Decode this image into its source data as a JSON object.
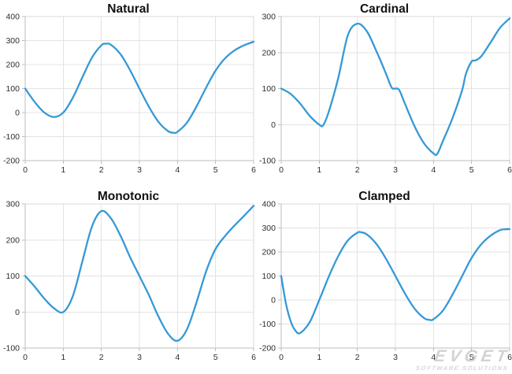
{
  "watermark": {
    "brand": "EVGET",
    "tagline": "SOFTWARE SOLUTIONS"
  },
  "colors": {
    "line": "#3599d6",
    "grid": "#e3e3e3",
    "plot_border": "#dadada",
    "axis": "#bdbdbd",
    "tick": "#bdbdbd",
    "tick_text": "#2e2e2e",
    "title_text": "#111111",
    "background": "#ffffff"
  },
  "chart_data": [
    {
      "id": "natural",
      "type": "line",
      "title": "Natural",
      "spline_type": "natural cubic spline",
      "xlim": [
        0,
        6
      ],
      "ylim": [
        -200,
        400
      ],
      "x_ticks": [
        0,
        1,
        2,
        3,
        4,
        5,
        6
      ],
      "y_ticks": [
        400,
        300,
        200,
        100,
        0,
        -100,
        -200
      ],
      "grid": true,
      "data_points": [
        [
          0,
          100
        ],
        [
          1,
          0
        ],
        [
          2,
          280
        ],
        [
          3,
          100
        ],
        [
          4,
          -80
        ],
        [
          5,
          175
        ],
        [
          6,
          295
        ]
      ],
      "curve": [
        [
          0,
          100
        ],
        [
          0.25,
          44
        ],
        [
          0.5,
          0.4
        ],
        [
          0.75,
          -18.4
        ],
        [
          1,
          0
        ],
        [
          1.25,
          61.6
        ],
        [
          1.5,
          146.5
        ],
        [
          1.75,
          228.1
        ],
        [
          2,
          280
        ],
        [
          2.125,
          287
        ],
        [
          2.25,
          282.5
        ],
        [
          2.5,
          243.8
        ],
        [
          2.75,
          178
        ],
        [
          3,
          100
        ],
        [
          3.25,
          24
        ],
        [
          3.5,
          -38.7
        ],
        [
          3.75,
          -77
        ],
        [
          3.9,
          -84
        ],
        [
          4,
          -80
        ],
        [
          4.25,
          -41.5
        ],
        [
          4.5,
          25.6
        ],
        [
          4.75,
          103.6
        ],
        [
          5,
          175
        ],
        [
          5.25,
          226.3
        ],
        [
          5.5,
          259.3
        ],
        [
          5.75,
          280.2
        ],
        [
          6,
          295
        ]
      ]
    },
    {
      "id": "cardinal",
      "type": "line",
      "title": "Cardinal",
      "spline_type": "cardinal spline",
      "xlim": [
        0,
        6
      ],
      "ylim": [
        -100,
        300
      ],
      "x_ticks": [
        0,
        1,
        2,
        3,
        4,
        5,
        6
      ],
      "y_ticks": [
        300,
        200,
        100,
        0,
        -100
      ],
      "grid": true,
      "data_points": [
        [
          0,
          100
        ],
        [
          1,
          0
        ],
        [
          2,
          280
        ],
        [
          3,
          100
        ],
        [
          4,
          -80
        ],
        [
          5,
          175
        ],
        [
          6,
          295
        ]
      ],
      "curve": [
        [
          0,
          100
        ],
        [
          0.25,
          85
        ],
        [
          0.5,
          58
        ],
        [
          0.75,
          24
        ],
        [
          1,
          0
        ],
        [
          1.1,
          -2
        ],
        [
          1.25,
          36
        ],
        [
          1.5,
          130
        ],
        [
          1.75,
          248
        ],
        [
          2,
          280
        ],
        [
          2.25,
          259
        ],
        [
          2.5,
          204
        ],
        [
          2.75,
          142
        ],
        [
          2.9,
          103
        ],
        [
          3,
          100
        ],
        [
          3.1,
          96
        ],
        [
          3.25,
          58
        ],
        [
          3.5,
          -4
        ],
        [
          3.75,
          -52
        ],
        [
          4,
          -80
        ],
        [
          4.1,
          -81
        ],
        [
          4.25,
          -45
        ],
        [
          4.5,
          18
        ],
        [
          4.75,
          95
        ],
        [
          4.85,
          140
        ],
        [
          5,
          175
        ],
        [
          5.1,
          178
        ],
        [
          5.25,
          189
        ],
        [
          5.5,
          228
        ],
        [
          5.75,
          269
        ],
        [
          6,
          295
        ]
      ]
    },
    {
      "id": "monotonic",
      "type": "line",
      "title": "Monotonic",
      "spline_type": "monotone cubic spline",
      "xlim": [
        0,
        6
      ],
      "ylim": [
        -100,
        300
      ],
      "x_ticks": [
        0,
        1,
        2,
        3,
        4,
        5,
        6
      ],
      "y_ticks": [
        300,
        200,
        100,
        0,
        -100
      ],
      "grid": true,
      "data_points": [
        [
          0,
          100
        ],
        [
          1,
          0
        ],
        [
          2,
          280
        ],
        [
          3,
          100
        ],
        [
          4,
          -80
        ],
        [
          5,
          175
        ],
        [
          6,
          295
        ]
      ],
      "curve": [
        [
          0,
          100
        ],
        [
          0.25,
          70.3
        ],
        [
          0.5,
          37.5
        ],
        [
          0.75,
          10.9
        ],
        [
          1,
          0
        ],
        [
          1.25,
          43.8
        ],
        [
          1.5,
          140
        ],
        [
          1.75,
          236.3
        ],
        [
          2,
          280
        ],
        [
          2.25,
          260.3
        ],
        [
          2.5,
          212.5
        ],
        [
          2.75,
          153.4
        ],
        [
          3,
          100
        ],
        [
          3.25,
          46.6
        ],
        [
          3.5,
          -12.5
        ],
        [
          3.75,
          -60.3
        ],
        [
          4,
          -80
        ],
        [
          4.25,
          -47.8
        ],
        [
          4.5,
          27.1
        ],
        [
          4.75,
          112.2
        ],
        [
          5,
          175
        ],
        [
          5.25,
          211.1
        ],
        [
          5.5,
          240.4
        ],
        [
          5.75,
          267
        ],
        [
          6,
          295
        ]
      ]
    },
    {
      "id": "clamped",
      "type": "line",
      "title": "Clamped",
      "spline_type": "clamped cubic spline",
      "xlim": [
        0,
        6
      ],
      "ylim": [
        -200,
        400
      ],
      "x_ticks": [
        0,
        1,
        2,
        3,
        4,
        5,
        6
      ],
      "y_ticks": [
        400,
        300,
        200,
        100,
        0,
        -100,
        -200
      ],
      "grid": true,
      "data_points": [
        [
          0,
          100
        ],
        [
          1,
          0
        ],
        [
          2,
          280
        ],
        [
          3,
          100
        ],
        [
          4,
          -80
        ],
        [
          5,
          175
        ],
        [
          6,
          295
        ]
      ],
      "curve": [
        [
          0,
          100
        ],
        [
          0.125,
          -15
        ],
        [
          0.25,
          -88.9
        ],
        [
          0.375,
          -128
        ],
        [
          0.5,
          -137.2
        ],
        [
          0.75,
          -91.8
        ],
        [
          1,
          0
        ],
        [
          1.25,
          97.3
        ],
        [
          1.5,
          183.4
        ],
        [
          1.75,
          247.8
        ],
        [
          2,
          280
        ],
        [
          2.1,
          282
        ],
        [
          2.25,
          272.9
        ],
        [
          2.5,
          233.6
        ],
        [
          2.75,
          172.5
        ],
        [
          3,
          100
        ],
        [
          3.25,
          26.9
        ],
        [
          3.5,
          -35.5
        ],
        [
          3.75,
          -75
        ],
        [
          3.9,
          -83
        ],
        [
          4,
          -80
        ],
        [
          4.25,
          -43.5
        ],
        [
          4.5,
          22.5
        ],
        [
          4.75,
          99
        ],
        [
          5,
          175
        ],
        [
          5.25,
          231.1
        ],
        [
          5.5,
          268
        ],
        [
          5.75,
          291
        ],
        [
          5.9,
          294.5
        ],
        [
          6,
          295
        ]
      ]
    }
  ]
}
